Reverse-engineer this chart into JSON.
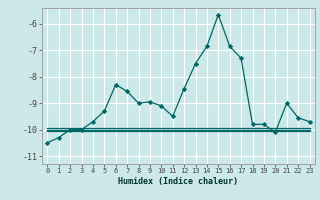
{
  "xlabel": "Humidex (Indice chaleur)",
  "bg_color": "#cce8e8",
  "grid_color": "#ffffff",
  "line_color": "#006666",
  "marker_color": "#006666",
  "xlim": [
    -0.5,
    23.5
  ],
  "ylim": [
    -11.3,
    -5.4
  ],
  "yticks": [
    -11,
    -10,
    -9,
    -8,
    -7,
    -6
  ],
  "xticks": [
    0,
    1,
    2,
    3,
    4,
    5,
    6,
    7,
    8,
    9,
    10,
    11,
    12,
    13,
    14,
    15,
    16,
    17,
    18,
    19,
    20,
    21,
    22,
    23
  ],
  "x": [
    0,
    1,
    2,
    3,
    4,
    5,
    6,
    7,
    8,
    9,
    10,
    11,
    12,
    13,
    14,
    15,
    16,
    17,
    18,
    19,
    20,
    21,
    22,
    23
  ],
  "y_main": [
    -10.5,
    -10.3,
    -10.0,
    -10.0,
    -9.7,
    -9.3,
    -8.3,
    -8.55,
    -9.0,
    -8.95,
    -9.1,
    -9.5,
    -8.45,
    -7.5,
    -6.85,
    -5.65,
    -6.85,
    -7.3,
    -9.8,
    -9.8,
    -10.1,
    -9.0,
    -9.55,
    -9.7
  ],
  "y_flat1": [
    -10.0,
    -10.0,
    -10.0,
    -10.0,
    -10.0,
    -10.0,
    -10.0,
    -10.0,
    -10.0,
    -10.0,
    -10.0,
    -10.0,
    -10.0,
    -10.0,
    -10.0,
    -10.0,
    -10.0,
    -10.0,
    -10.0,
    -10.0,
    -10.0,
    -10.0,
    -10.0,
    -10.0
  ],
  "y_flat2": [
    -10.05,
    -10.05,
    -10.05,
    -10.05,
    -10.05,
    -10.05,
    -10.05,
    -10.05,
    -10.05,
    -10.05,
    -10.05,
    -10.05,
    -10.05,
    -10.05,
    -10.05,
    -10.05,
    -10.05,
    -10.05,
    -10.05,
    -10.05,
    -10.05,
    -10.05,
    -10.05,
    -10.05
  ],
  "y_flat3": [
    -9.95,
    -9.95,
    -9.95,
    -9.95,
    -9.95,
    -9.95,
    -9.95,
    -9.95,
    -9.95,
    -9.95,
    -9.95,
    -9.95,
    -9.95,
    -9.95,
    -9.95,
    -9.95,
    -9.95,
    -9.95,
    -9.95,
    -9.95,
    -9.95,
    -9.95,
    -9.95,
    -9.95
  ]
}
